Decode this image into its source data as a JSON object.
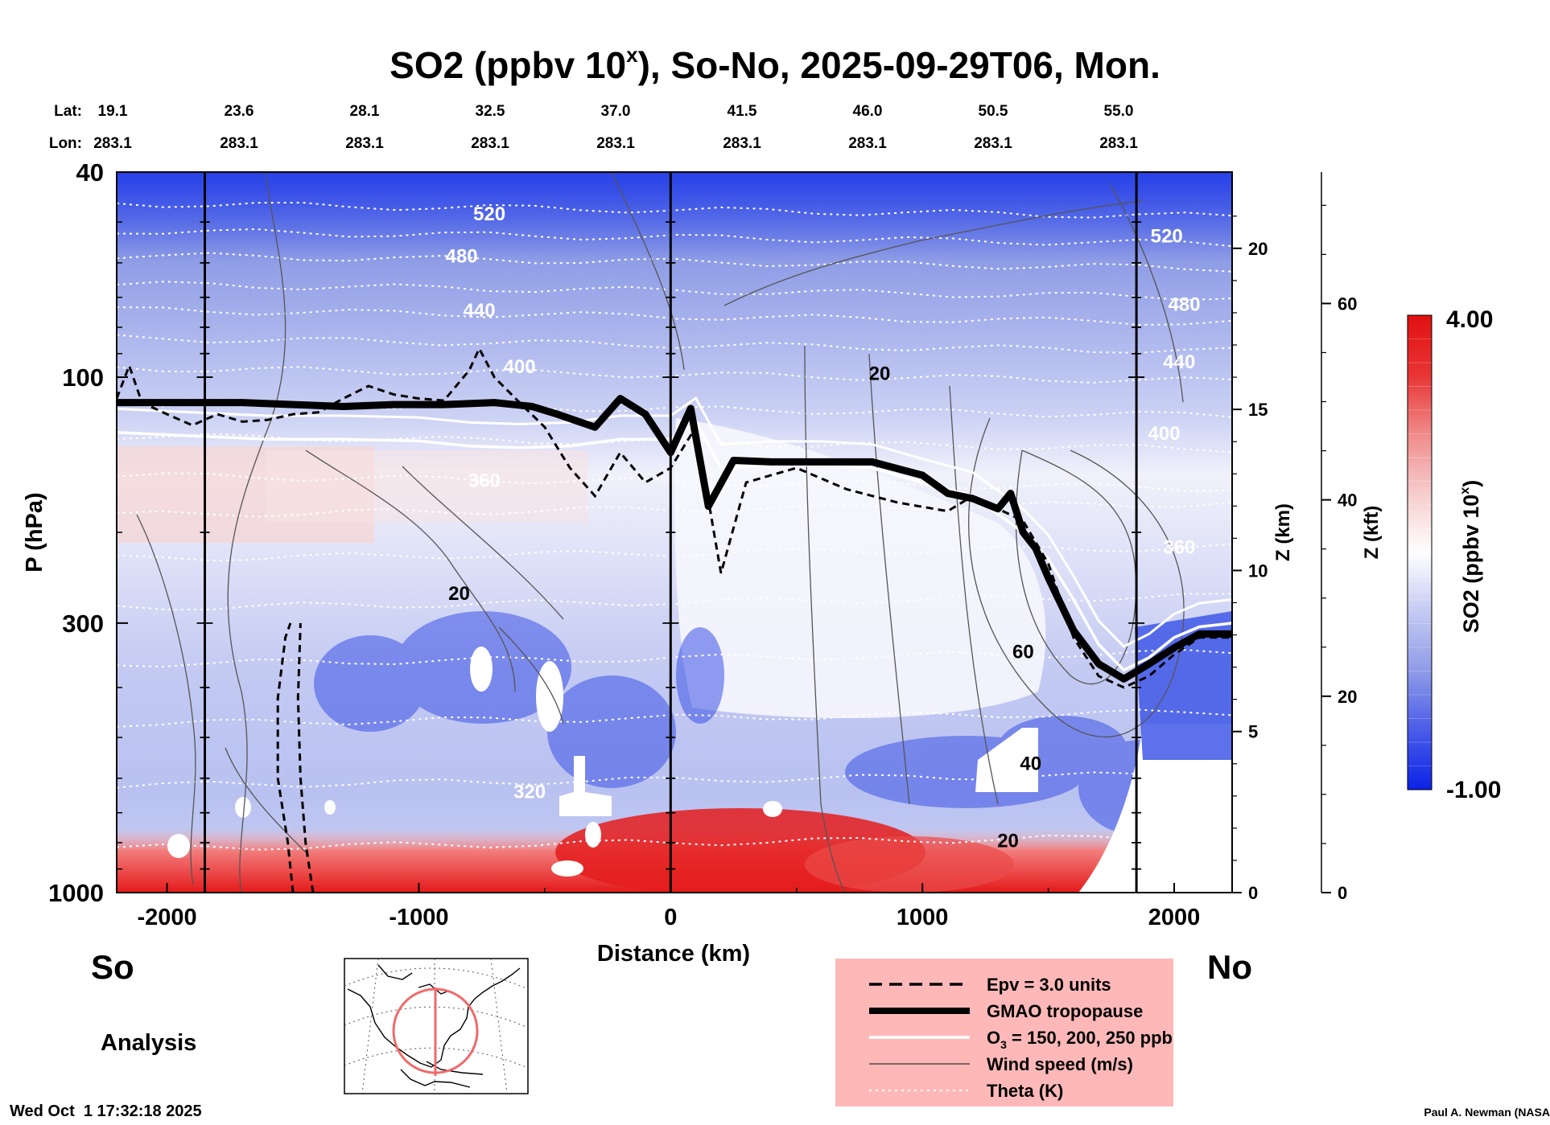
{
  "title": {
    "main": "SO2 (ppbv 10",
    "sup": "x",
    "rest": "), So-No, 2025-09-29T06, Mon."
  },
  "location_header": {
    "lat_label": "Lat:",
    "lon_label": "Lon:",
    "lat_values": [
      "19.1",
      "23.6",
      "28.1",
      "32.5",
      "37.0",
      "41.5",
      "46.0",
      "50.5",
      "55.0"
    ],
    "lon_values": [
      "283.1",
      "283.1",
      "283.1",
      "283.1",
      "283.1",
      "283.1",
      "283.1",
      "283.1",
      "283.1"
    ]
  },
  "end_labels": {
    "south": "So",
    "north": "No"
  },
  "analysis_label": "Analysis",
  "timestamp": "Wed Oct  1 17:32:18 2025",
  "credit": "Paul A. Newman (NASA",
  "colorbar": {
    "max_label": "4.00",
    "min_label": "-1.00",
    "label_main": "SO2 (ppbv 10",
    "label_sup": "x",
    "label_end": ")",
    "colors": [
      "#0a22e6",
      "#4a5ce8",
      "#8f9be8",
      "#c4caf2",
      "#ffffff",
      "#f6cccc",
      "#f08a8a",
      "#e83434",
      "#e01010"
    ]
  },
  "legend": {
    "background": "#ffb8b8",
    "items": [
      {
        "style": "dashed",
        "label": "Epv = 3.0 units"
      },
      {
        "style": "thick-black",
        "label": "GMAO tropopause"
      },
      {
        "style": "white",
        "label_main": "O",
        "label_sub": "3",
        "label_rest": " = 150, 200, 250 ppb"
      },
      {
        "style": "thin-black",
        "label": "Wind speed (m/s)"
      },
      {
        "style": "dotted-white",
        "label": "Theta (K)"
      }
    ]
  },
  "chart_data": {
    "type": "heatmap",
    "title": "SO2 (ppbv 10^x), So-No, 2025-09-29T06, Mon.",
    "xlabel": "Distance (km)",
    "ylabel": "P (hPa)",
    "xlim": [
      -2200,
      2230
    ],
    "ylim": [
      1000,
      40
    ],
    "y_scale": "log",
    "x_ticks": [
      -2000,
      -1000,
      0,
      1000,
      2000
    ],
    "x_tick_labels": [
      "-2000",
      "-1000",
      "0",
      "1000",
      "2000"
    ],
    "y_ticks": [
      40,
      100,
      300,
      1000
    ],
    "y_tick_labels": [
      "40",
      "100",
      "300",
      "1000"
    ],
    "z_km_label": "Z (km)",
    "z_km_ticks": [
      0,
      5,
      10,
      15,
      20
    ],
    "z_km_tick_labels": [
      "0",
      "5",
      "10",
      "15",
      "20"
    ],
    "z_kft_label": "Z (kft)",
    "z_kft_ticks": [
      0,
      20,
      40,
      60
    ],
    "z_kft_tick_labels": [
      "0",
      "20",
      "40",
      "60"
    ],
    "colorbar_range": [
      -1.0,
      4.0
    ],
    "vertical_markers_km": [
      -1850,
      0,
      1850
    ],
    "theta_labels": [
      {
        "x": -720,
        "p": 48,
        "text": "520"
      },
      {
        "x": -830,
        "p": 58,
        "text": "480"
      },
      {
        "x": -760,
        "p": 74,
        "text": "440"
      },
      {
        "x": -600,
        "p": 95,
        "text": "400"
      },
      {
        "x": -740,
        "p": 158,
        "text": "360"
      },
      {
        "x": -560,
        "p": 635,
        "text": "320"
      },
      {
        "x": 1970,
        "p": 53,
        "text": "520"
      },
      {
        "x": 2040,
        "p": 72,
        "text": "480"
      },
      {
        "x": 2020,
        "p": 93,
        "text": "440"
      },
      {
        "x": 1960,
        "p": 128,
        "text": "400"
      },
      {
        "x": 2020,
        "p": 213,
        "text": "360"
      }
    ],
    "wind_labels": [
      {
        "x": 830,
        "p": 98,
        "text": "20"
      },
      {
        "x": -840,
        "p": 262,
        "text": "20"
      },
      {
        "x": 1400,
        "p": 340,
        "text": "60"
      },
      {
        "x": 1430,
        "p": 560,
        "text": "40"
      },
      {
        "x": 1340,
        "p": 790,
        "text": "20"
      }
    ],
    "tropopause": {
      "x": [
        -2200,
        -2000,
        -1700,
        -1500,
        -1300,
        -1100,
        -900,
        -700,
        -550,
        -450,
        -300,
        -200,
        -100,
        0,
        80,
        150,
        250,
        400,
        600,
        800,
        1000,
        1100,
        1200,
        1300,
        1350,
        1400,
        1450,
        1500,
        1600,
        1700,
        1800,
        1900,
        2000,
        2100,
        2230
      ],
      "p": [
        112,
        112,
        112,
        113,
        114,
        113,
        113,
        112,
        114,
        118,
        125,
        110,
        118,
        140,
        115,
        178,
        145,
        146,
        146,
        146,
        155,
        168,
        172,
        180,
        168,
        200,
        215,
        245,
        310,
        360,
        385,
        360,
        335,
        315,
        315
      ]
    },
    "epv": {
      "x": [
        -2200,
        -2150,
        -2100,
        -2000,
        -1900,
        -1800,
        -1700,
        -1600,
        -1500,
        -1400,
        -1300,
        -1200,
        -1100,
        -1000,
        -900,
        -800,
        -760,
        -700,
        -600,
        -500,
        -400,
        -300,
        -200,
        -100,
        0,
        100,
        200,
        300,
        500,
        700,
        900,
        1100,
        1200,
        1300,
        1400,
        1500,
        1600,
        1700,
        1800,
        1900,
        2000,
        2100,
        2230
      ],
      "p": [
        110,
        95,
        112,
        118,
        124,
        118,
        122,
        121,
        118,
        117,
        110,
        104,
        108,
        110,
        111,
        97,
        88,
        100,
        112,
        125,
        150,
        170,
        140,
        160,
        150,
        125,
        240,
        160,
        150,
        165,
        175,
        182,
        170,
        180,
        190,
        230,
        320,
        380,
        400,
        380,
        345,
        320,
        320
      ]
    },
    "o3": {
      "x": [
        -2200,
        -1900,
        -1600,
        -1300,
        -1000,
        -800,
        -600,
        -400,
        -200,
        0,
        100,
        200,
        400,
        600,
        800,
        1000,
        1200,
        1400,
        1500,
        1600,
        1700,
        1800,
        1900,
        2000,
        2100,
        2230
      ],
      "p": [
        128,
        130,
        132,
        132,
        133,
        136,
        137,
        136,
        132,
        132,
        122,
        150,
        148,
        148,
        150,
        160,
        170,
        200,
        225,
        270,
        330,
        370,
        350,
        320,
        305,
        300
      ]
    }
  }
}
